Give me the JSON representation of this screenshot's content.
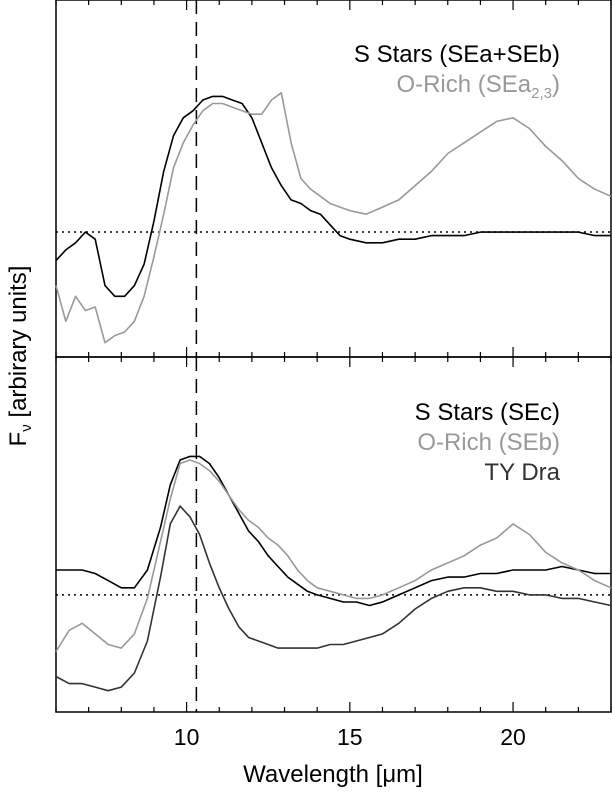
{
  "colors": {
    "black": "#000000",
    "gray": "#999999",
    "dark": "#333333"
  },
  "chart_data": {
    "type": "line",
    "xlabel": "Wavelength [μm]",
    "ylabel_main": "F",
    "ylabel_sub": "ν",
    "ylabel_rest": " [arbirary units]",
    "xlim": [
      6,
      23
    ],
    "ylim": [
      0,
      1
    ],
    "xticks": [
      10,
      15,
      20
    ],
    "vline_x": 10.3,
    "panels": [
      {
        "hline_y": 0.35,
        "legend": [
          {
            "text": "S Stars (SEa+SEb)",
            "sub": "",
            "color_key": "black"
          },
          {
            "text": "O-Rich (SEa",
            "sub": "2,3",
            "suffix": ")",
            "color_key": "gray"
          }
        ],
        "series": [
          {
            "color_key": "black",
            "x": [
              6.0,
              6.3,
              6.6,
              6.9,
              7.2,
              7.5,
              7.8,
              8.1,
              8.4,
              8.7,
              9.0,
              9.3,
              9.6,
              9.9,
              10.2,
              10.5,
              10.8,
              11.1,
              11.4,
              11.7,
              12.0,
              12.3,
              12.6,
              12.9,
              13.2,
              13.5,
              13.8,
              14.1,
              14.4,
              14.7,
              15.0,
              15.5,
              16.0,
              16.5,
              17.0,
              17.5,
              18.0,
              18.5,
              19.0,
              19.5,
              20.0,
              20.5,
              21.0,
              21.5,
              22.0,
              22.5,
              23.0
            ],
            "y": [
              0.27,
              0.3,
              0.32,
              0.35,
              0.33,
              0.2,
              0.17,
              0.17,
              0.2,
              0.26,
              0.38,
              0.52,
              0.62,
              0.67,
              0.69,
              0.72,
              0.73,
              0.73,
              0.72,
              0.71,
              0.67,
              0.6,
              0.53,
              0.48,
              0.44,
              0.43,
              0.41,
              0.4,
              0.37,
              0.34,
              0.33,
              0.32,
              0.32,
              0.33,
              0.33,
              0.34,
              0.34,
              0.34,
              0.35,
              0.35,
              0.35,
              0.35,
              0.35,
              0.35,
              0.35,
              0.34,
              0.34
            ]
          },
          {
            "color_key": "gray",
            "x": [
              6.0,
              6.3,
              6.6,
              6.9,
              7.2,
              7.5,
              7.8,
              8.1,
              8.4,
              8.7,
              9.0,
              9.3,
              9.6,
              9.9,
              10.2,
              10.5,
              10.8,
              11.1,
              11.4,
              11.7,
              12.0,
              12.3,
              12.6,
              12.9,
              13.2,
              13.5,
              13.8,
              14.1,
              14.4,
              14.7,
              15.0,
              15.5,
              16.0,
              16.5,
              17.0,
              17.5,
              18.0,
              18.5,
              19.0,
              19.5,
              20.0,
              20.5,
              21.0,
              21.5,
              22.0,
              22.5,
              23.0
            ],
            "y": [
              0.2,
              0.1,
              0.17,
              0.13,
              0.14,
              0.04,
              0.06,
              0.07,
              0.1,
              0.17,
              0.28,
              0.4,
              0.53,
              0.6,
              0.65,
              0.69,
              0.71,
              0.71,
              0.7,
              0.69,
              0.68,
              0.68,
              0.72,
              0.74,
              0.6,
              0.5,
              0.47,
              0.45,
              0.43,
              0.42,
              0.41,
              0.4,
              0.42,
              0.44,
              0.48,
              0.52,
              0.57,
              0.6,
              0.63,
              0.66,
              0.67,
              0.64,
              0.59,
              0.55,
              0.5,
              0.47,
              0.45
            ]
          }
        ]
      },
      {
        "hline_y": 0.33,
        "legend": [
          {
            "text": "S Stars (SEc)",
            "sub": "",
            "color_key": "black"
          },
          {
            "text": "O-Rich (SEb)",
            "sub": "",
            "color_key": "gray"
          },
          {
            "text": "TY Dra",
            "sub": "",
            "color_key": "dark"
          }
        ],
        "series": [
          {
            "color_key": "black",
            "x": [
              6.0,
              6.4,
              6.8,
              7.2,
              7.6,
              8.0,
              8.4,
              8.8,
              9.2,
              9.5,
              9.8,
              10.1,
              10.4,
              10.7,
              11.0,
              11.3,
              11.6,
              11.9,
              12.2,
              12.5,
              12.8,
              13.1,
              13.4,
              13.7,
              14.0,
              14.4,
              14.8,
              15.2,
              15.6,
              16.0,
              16.5,
              17.0,
              17.5,
              18.0,
              18.5,
              19.0,
              19.5,
              20.0,
              20.5,
              21.0,
              21.5,
              22.0,
              22.5,
              23.0
            ],
            "y": [
              0.4,
              0.4,
              0.4,
              0.39,
              0.37,
              0.35,
              0.35,
              0.4,
              0.52,
              0.64,
              0.71,
              0.72,
              0.72,
              0.7,
              0.66,
              0.61,
              0.56,
              0.51,
              0.48,
              0.44,
              0.41,
              0.38,
              0.36,
              0.34,
              0.33,
              0.32,
              0.31,
              0.31,
              0.3,
              0.31,
              0.33,
              0.35,
              0.37,
              0.38,
              0.38,
              0.39,
              0.39,
              0.4,
              0.4,
              0.4,
              0.41,
              0.4,
              0.39,
              0.39
            ]
          },
          {
            "color_key": "gray",
            "x": [
              6.0,
              6.4,
              6.8,
              7.2,
              7.6,
              8.0,
              8.4,
              8.8,
              9.2,
              9.5,
              9.8,
              10.1,
              10.4,
              10.7,
              11.0,
              11.3,
              11.6,
              11.9,
              12.2,
              12.5,
              12.8,
              13.1,
              13.4,
              13.7,
              14.0,
              14.4,
              14.8,
              15.2,
              15.6,
              16.0,
              16.5,
              17.0,
              17.5,
              18.0,
              18.5,
              19.0,
              19.5,
              20.0,
              20.5,
              21.0,
              21.5,
              22.0,
              22.5,
              23.0
            ],
            "y": [
              0.17,
              0.23,
              0.25,
              0.22,
              0.19,
              0.18,
              0.22,
              0.32,
              0.48,
              0.6,
              0.7,
              0.71,
              0.7,
              0.68,
              0.65,
              0.61,
              0.57,
              0.54,
              0.52,
              0.49,
              0.47,
              0.44,
              0.4,
              0.37,
              0.35,
              0.34,
              0.33,
              0.32,
              0.32,
              0.33,
              0.35,
              0.37,
              0.4,
              0.42,
              0.44,
              0.47,
              0.49,
              0.53,
              0.5,
              0.45,
              0.42,
              0.4,
              0.37,
              0.35
            ]
          },
          {
            "color_key": "dark",
            "x": [
              6.0,
              6.4,
              6.8,
              7.2,
              7.6,
              8.0,
              8.4,
              8.8,
              9.2,
              9.5,
              9.8,
              10.1,
              10.4,
              10.7,
              11.0,
              11.3,
              11.6,
              11.9,
              12.2,
              12.5,
              12.8,
              13.1,
              13.4,
              13.7,
              14.0,
              14.4,
              14.8,
              15.2,
              15.6,
              16.0,
              16.5,
              17.0,
              17.5,
              18.0,
              18.5,
              19.0,
              19.5,
              20.0,
              20.5,
              21.0,
              21.5,
              22.0,
              22.5,
              23.0
            ],
            "y": [
              0.1,
              0.08,
              0.08,
              0.07,
              0.06,
              0.07,
              0.11,
              0.2,
              0.38,
              0.53,
              0.58,
              0.55,
              0.5,
              0.42,
              0.35,
              0.29,
              0.24,
              0.21,
              0.2,
              0.19,
              0.18,
              0.18,
              0.18,
              0.18,
              0.18,
              0.19,
              0.19,
              0.2,
              0.21,
              0.22,
              0.25,
              0.29,
              0.32,
              0.34,
              0.35,
              0.35,
              0.34,
              0.34,
              0.33,
              0.33,
              0.32,
              0.32,
              0.31,
              0.3
            ]
          }
        ]
      }
    ]
  }
}
